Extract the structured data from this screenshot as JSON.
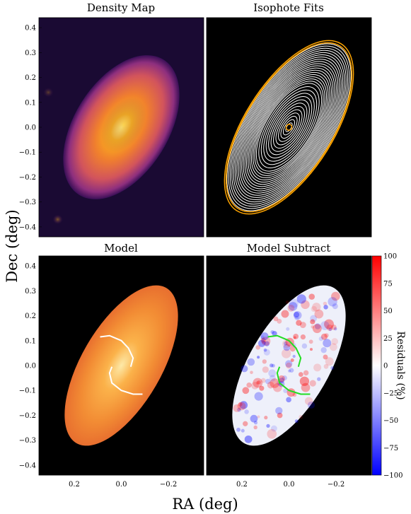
{
  "figure": {
    "xlabel": "RA (deg)",
    "ylabel": "Dec (deg)"
  },
  "chart_data": [
    {
      "type": "heatmap",
      "title": "Density Map",
      "xlim": [
        0.35,
        -0.35
      ],
      "ylim": [
        -0.44,
        0.44
      ],
      "y_ticks": [
        "0.4",
        "0.3",
        "0.2",
        "0.1",
        "0.0",
        "−0.1",
        "−0.2",
        "−0.3",
        "−0.4"
      ],
      "x_ticks": [],
      "colormap": "inferno",
      "blobs": [
        {
          "x": 0.0,
          "y": 0.0,
          "a": 0.32,
          "b": 0.2,
          "pa_deg": 58,
          "w": 1.0
        },
        {
          "x": -0.01,
          "y": 0.01,
          "a": 0.12,
          "b": 0.08,
          "pa_deg": 58,
          "w": 0.5
        },
        {
          "x": 0.27,
          "y": -0.37,
          "a": 0.02,
          "b": 0.02,
          "pa_deg": 0,
          "w": 0.45
        },
        {
          "x": 0.31,
          "y": 0.14,
          "a": 0.02,
          "b": 0.02,
          "pa_deg": 0,
          "w": 0.3
        }
      ]
    },
    {
      "type": "isophote_fits",
      "title": "Isophote Fits",
      "xlim": [
        0.35,
        -0.35
      ],
      "ylim": [
        -0.44,
        0.44
      ],
      "center": [
        0.0,
        0.0
      ],
      "pa_deg": 58,
      "axis_ratio": 0.48,
      "isophote_semi_major_axes": [
        0.02,
        0.035,
        0.05,
        0.065,
        0.08,
        0.095,
        0.11,
        0.125,
        0.14,
        0.155,
        0.17,
        0.185,
        0.2,
        0.21,
        0.22,
        0.23,
        0.24,
        0.25,
        0.26,
        0.27,
        0.28,
        0.29,
        0.3,
        0.31,
        0.32,
        0.33,
        0.34,
        0.35,
        0.36,
        0.37,
        0.38,
        0.385
      ],
      "highlighted_isophotes": [
        0.012,
        0.385,
        0.395
      ],
      "line_color": "#ffffff",
      "highlight_color": "#ffa500"
    },
    {
      "type": "model",
      "title": "Model",
      "xlim": [
        0.35,
        -0.35
      ],
      "ylim": [
        -0.44,
        0.44
      ],
      "x_ticks": [
        "0.2",
        "0.0",
        "−0.2"
      ],
      "y_ticks": [
        "0.4",
        "0.3",
        "0.2",
        "0.1",
        "0.0",
        "−0.1",
        "−0.2",
        "−0.3",
        "−0.4"
      ],
      "ellipse": {
        "x": 0.0,
        "y": 0.0,
        "a": 0.36,
        "b": 0.17,
        "pa_deg": 60
      },
      "arm_color": "#ffffff",
      "arms": [
        [
          [
            0.09,
            0.115
          ],
          [
            0.05,
            0.12
          ],
          [
            0.0,
            0.1
          ],
          [
            -0.03,
            0.07
          ],
          [
            -0.05,
            0.03
          ],
          [
            -0.04,
            -0.005
          ]
        ],
        [
          [
            0.04,
            -0.005
          ],
          [
            0.05,
            -0.03
          ],
          [
            0.04,
            -0.07
          ],
          [
            0.0,
            -0.1
          ],
          [
            -0.05,
            -0.115
          ],
          [
            -0.09,
            -0.115
          ]
        ]
      ]
    },
    {
      "type": "residual_map",
      "title": "Model Subtract",
      "xlim": [
        0.35,
        -0.35
      ],
      "ylim": [
        -0.44,
        0.44
      ],
      "x_ticks": [
        "0.2",
        "0.0",
        "−0.2"
      ],
      "ellipse": {
        "x": 0.0,
        "y": 0.0,
        "a": 0.36,
        "b": 0.17,
        "pa_deg": 60
      },
      "arm_color": "#22dd22",
      "arms": [
        [
          [
            0.09,
            0.115
          ],
          [
            0.05,
            0.12
          ],
          [
            0.0,
            0.1
          ],
          [
            -0.03,
            0.07
          ],
          [
            -0.05,
            0.03
          ],
          [
            -0.04,
            -0.005
          ]
        ],
        [
          [
            0.04,
            -0.005
          ],
          [
            0.05,
            -0.03
          ],
          [
            0.04,
            -0.07
          ],
          [
            0.0,
            -0.1
          ],
          [
            -0.05,
            -0.115
          ],
          [
            -0.09,
            -0.115
          ]
        ]
      ],
      "colorbar": {
        "label": "Residuals (%)",
        "range": [
          -100,
          100
        ],
        "ticks": [
          "100",
          "75",
          "50",
          "25",
          "0",
          "−25",
          "−50",
          "−75",
          "−100"
        ],
        "colors": [
          "#0000ff",
          "#ffffff",
          "#ff0000"
        ]
      }
    }
  ]
}
